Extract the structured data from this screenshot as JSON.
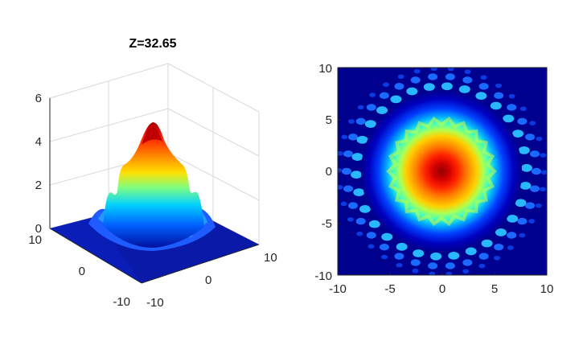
{
  "chart_data": [
    {
      "type": "surface",
      "title": "Z=32.65",
      "xlabel": "",
      "ylabel": "",
      "zlabel": "",
      "xlim": [
        -10,
        10
      ],
      "ylim": [
        -10,
        10
      ],
      "zlim": [
        0,
        6
      ],
      "x_ticks": [
        "-10",
        "0",
        "10"
      ],
      "y_ticks": [
        "10",
        "0",
        "-10"
      ],
      "z_ticks": [
        "0",
        "2",
        "4",
        "6"
      ],
      "peak_value": 4.8,
      "colormap": "jet",
      "grid": true,
      "view": "3d-isometric"
    },
    {
      "type": "heatmap",
      "title": "",
      "xlabel": "",
      "ylabel": "",
      "xlim": [
        -10,
        10
      ],
      "ylim": [
        -10,
        10
      ],
      "x_ticks": [
        "-10",
        "-5",
        "0",
        "5",
        "10"
      ],
      "y_ticks": [
        "10",
        "5",
        "0",
        "-5",
        "-10"
      ],
      "colormap": "jet",
      "background_color": "#00008f",
      "description_center": [
        0,
        0
      ]
    }
  ]
}
